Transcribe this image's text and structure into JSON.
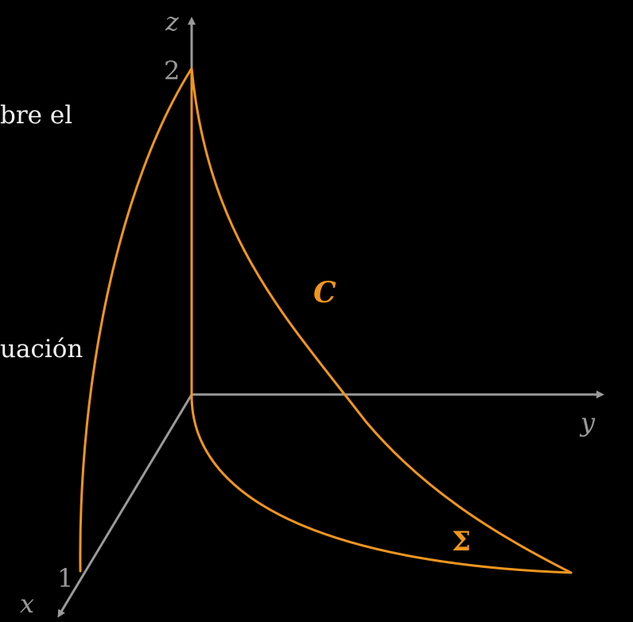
{
  "text_fragments": {
    "line1": "bre el",
    "line2": "uación"
  },
  "axes": {
    "x_label": "x",
    "y_label": "y",
    "z_label": "z",
    "x_tick": "1",
    "z_tick": "2"
  },
  "curve_labels": {
    "c": "C",
    "sigma": "Σ"
  },
  "colors": {
    "background": "#000000",
    "axis": "#9a9a9a",
    "curve": "#f0961e",
    "text": "#f2f2f2"
  }
}
